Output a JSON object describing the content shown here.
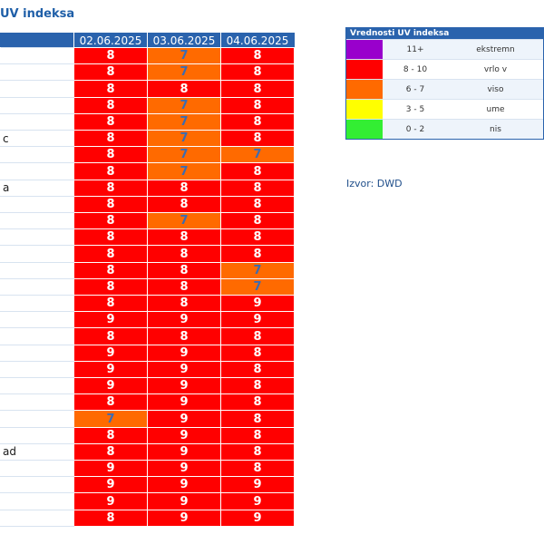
{
  "page": {
    "title": "UV indeksa"
  },
  "table": {
    "headers": [
      "",
      "02.06.2025",
      "03.06.2025",
      "04.06.2025"
    ],
    "rows": [
      {
        "city": "",
        "values": [
          "8",
          "7",
          "8"
        ]
      },
      {
        "city": "",
        "values": [
          "8",
          "7",
          "8"
        ]
      },
      {
        "city": "",
        "values": [
          "8",
          "8",
          "8"
        ]
      },
      {
        "city": "",
        "values": [
          "8",
          "7",
          "8"
        ]
      },
      {
        "city": "",
        "values": [
          "8",
          "7",
          "8"
        ]
      },
      {
        "city": "c",
        "values": [
          "8",
          "7",
          "8"
        ]
      },
      {
        "city": "",
        "values": [
          "8",
          "7",
          "7"
        ]
      },
      {
        "city": "",
        "values": [
          "8",
          "7",
          "8"
        ]
      },
      {
        "city": "a",
        "values": [
          "8",
          "8",
          "8"
        ]
      },
      {
        "city": "",
        "values": [
          "8",
          "8",
          "8"
        ]
      },
      {
        "city": "",
        "values": [
          "8",
          "7",
          "8"
        ]
      },
      {
        "city": "",
        "values": [
          "8",
          "8",
          "8"
        ]
      },
      {
        "city": "",
        "values": [
          "8",
          "8",
          "8"
        ]
      },
      {
        "city": "",
        "values": [
          "8",
          "8",
          "7"
        ]
      },
      {
        "city": "",
        "values": [
          "8",
          "8",
          "7"
        ]
      },
      {
        "city": "",
        "values": [
          "8",
          "8",
          "9"
        ]
      },
      {
        "city": "",
        "values": [
          "9",
          "9",
          "9"
        ]
      },
      {
        "city": "",
        "values": [
          "8",
          "8",
          "8"
        ]
      },
      {
        "city": "",
        "values": [
          "9",
          "9",
          "8"
        ]
      },
      {
        "city": "",
        "values": [
          "9",
          "9",
          "8"
        ]
      },
      {
        "city": "",
        "values": [
          "9",
          "9",
          "8"
        ]
      },
      {
        "city": "",
        "values": [
          "8",
          "9",
          "8"
        ]
      },
      {
        "city": "",
        "values": [
          "7",
          "9",
          "8"
        ]
      },
      {
        "city": "",
        "values": [
          "8",
          "9",
          "8"
        ]
      },
      {
        "city": "ad",
        "values": [
          "8",
          "9",
          "8"
        ]
      },
      {
        "city": "",
        "values": [
          "9",
          "9",
          "8"
        ]
      },
      {
        "city": "",
        "values": [
          "9",
          "9",
          "9"
        ]
      },
      {
        "city": "",
        "values": [
          "9",
          "9",
          "9"
        ]
      },
      {
        "city": "",
        "values": [
          "8",
          "9",
          "9"
        ]
      }
    ]
  },
  "legend": {
    "title": "Vrednosti UV indeksa",
    "rows": [
      {
        "color": "#9900cc",
        "range": "11+",
        "label": "ekstremn"
      },
      {
        "color": "#ff0000",
        "range": "8 - 10",
        "label": "vrlo v"
      },
      {
        "color": "#ff6a00",
        "range": "6 - 7",
        "label": "viso"
      },
      {
        "color": "#ffff00",
        "range": "3 - 5",
        "label": "ume"
      },
      {
        "color": "#33ee33",
        "range": "0 - 2",
        "label": "nis"
      }
    ]
  },
  "source": {
    "text": "Izvor: DWD"
  },
  "colors": {
    "red": "#ff0000",
    "orange": "#ff6a00",
    "header": "#2a63ad"
  }
}
